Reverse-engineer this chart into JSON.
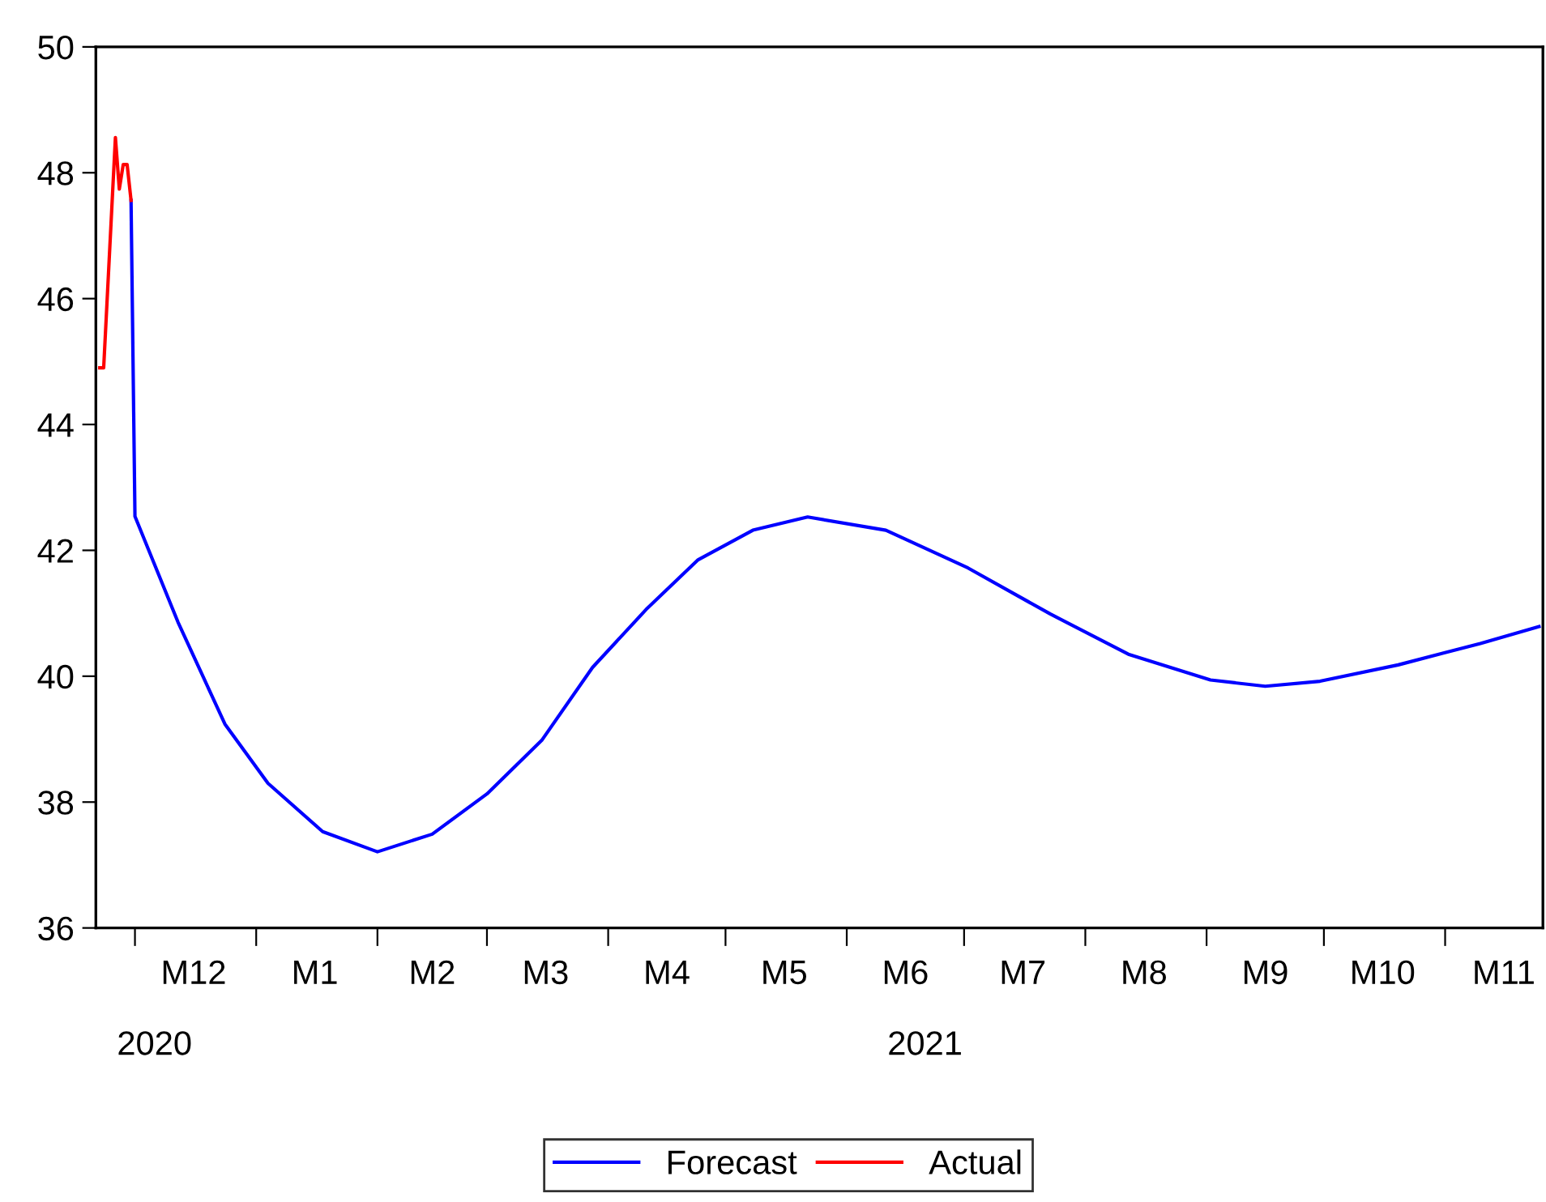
{
  "chart_data": {
    "type": "line",
    "x": [
      "2020-11-22",
      "2020-11-23",
      "2020-11-26",
      "2020-11-27",
      "2020-11-28",
      "2020-11-29",
      "2020-11-30",
      "2020-12-01",
      "2020-12-12",
      "2020-12-24",
      "2021-01-04",
      "2021-01-18",
      "2021-02-01",
      "2021-02-15",
      "2021-03-01",
      "2021-03-15",
      "2021-03-28",
      "2021-04-11",
      "2021-04-24",
      "2021-05-08",
      "2021-05-22",
      "2021-06-11",
      "2021-07-02",
      "2021-07-23",
      "2021-08-12",
      "2021-09-02",
      "2021-09-16",
      "2021-09-30",
      "2021-10-20",
      "2021-11-10",
      "2021-11-25"
    ],
    "series": [
      {
        "name": "Forecast",
        "color": "#0000ff",
        "values": [
          null,
          null,
          null,
          null,
          null,
          null,
          47.56,
          42.54,
          40.86,
          39.24,
          38.3,
          37.53,
          37.21,
          37.49,
          38.13,
          38.98,
          40.14,
          41.08,
          41.85,
          42.32,
          42.53,
          42.32,
          41.72,
          40.99,
          40.35,
          39.94,
          39.84,
          39.92,
          40.18,
          40.52,
          40.79
        ]
      },
      {
        "name": "Actual",
        "color": "#ff0000",
        "values": [
          44.9,
          44.9,
          48.56,
          47.74,
          48.13,
          48.13,
          47.56,
          null,
          null,
          null,
          null,
          null,
          null,
          null,
          null,
          null,
          null,
          null,
          null,
          null,
          null,
          null,
          null,
          null,
          null,
          null,
          null,
          null,
          null,
          null,
          null
        ]
      }
    ],
    "xlim": [
      "2020-11-21",
      "2021-11-26"
    ],
    "xticks": [
      {
        "value": "2020-12-01",
        "label": null
      },
      {
        "value": "2021-01-01",
        "label": null
      },
      {
        "value": "2021-02-01",
        "label": null
      },
      {
        "value": "2021-03-01",
        "label": null
      },
      {
        "value": "2021-04-01",
        "label": null
      },
      {
        "value": "2021-05-01",
        "label": null
      },
      {
        "value": "2021-06-01",
        "label": null
      },
      {
        "value": "2021-07-01",
        "label": null
      },
      {
        "value": "2021-08-01",
        "label": null
      },
      {
        "value": "2021-09-01",
        "label": null
      },
      {
        "value": "2021-10-01",
        "label": null
      },
      {
        "value": "2021-11-01",
        "label": null
      },
      {
        "value": "2020-12-16",
        "label": "M12"
      },
      {
        "value": "2021-01-16",
        "label": "M1"
      },
      {
        "value": "2021-02-15",
        "label": "M2"
      },
      {
        "value": "2021-03-16",
        "label": "M3"
      },
      {
        "value": "2021-04-16",
        "label": "M4"
      },
      {
        "value": "2021-05-16",
        "label": "M5"
      },
      {
        "value": "2021-06-16",
        "label": "M6"
      },
      {
        "value": "2021-07-16",
        "label": "M7"
      },
      {
        "value": "2021-08-16",
        "label": "M8"
      },
      {
        "value": "2021-09-16",
        "label": "M9"
      },
      {
        "value": "2021-10-16",
        "label": "M10"
      },
      {
        "value": "2021-11-16",
        "label": "M11"
      }
    ],
    "x2lim": [
      "2020-11-21",
      "2021-11-26"
    ],
    "x2ticks": [
      {
        "value": "2020-12-06",
        "label": "2020"
      },
      {
        "value": "2021-06-21",
        "label": "2021"
      }
    ],
    "ylim": [
      36,
      50
    ],
    "yticks": [
      36,
      38,
      40,
      42,
      44,
      46,
      48,
      50
    ],
    "grid": false,
    "legend": "bottom",
    "marker": "none",
    "line_style": "solid"
  }
}
